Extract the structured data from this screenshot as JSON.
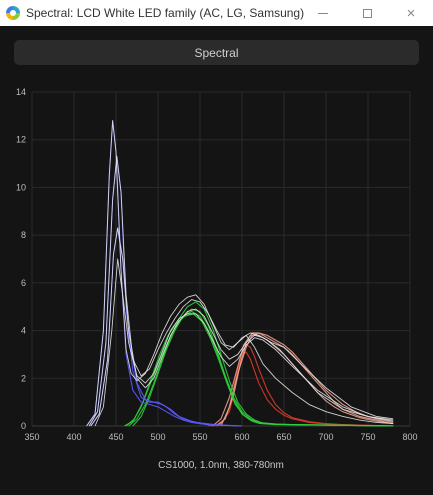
{
  "window": {
    "title": "Spectral: LCD White LED family (AC, LG, Samsung)",
    "minimize_icon": "minimize-icon",
    "maximize_icon": "maximize-icon",
    "close_icon": "close-icon",
    "close_glyph": "×"
  },
  "header": {
    "label": "Spectral"
  },
  "chart_data": {
    "type": "line",
    "title": "",
    "xlabel": "CS1000, 1.0nm, 380-780nm",
    "ylabel": "",
    "xlim": [
      350,
      800
    ],
    "ylim": [
      0,
      14
    ],
    "xticks": [
      350,
      400,
      450,
      500,
      550,
      600,
      650,
      700,
      750,
      800
    ],
    "yticks": [
      0,
      2,
      4,
      6,
      8,
      10,
      12,
      14
    ],
    "grid": true,
    "legend": "none",
    "series_colors": {
      "white": "#e6e6e6",
      "blue": "#5b5bff",
      "green": "#2fcf3a",
      "red": "#e03a2a",
      "red_light": "#e8a090"
    },
    "series": [
      {
        "color_key": "blue",
        "x": [
          415,
          425,
          435,
          442,
          446,
          450,
          456,
          462,
          470,
          480,
          490,
          500,
          510,
          520,
          530,
          540,
          560,
          600
        ],
        "y": [
          0,
          0.5,
          4.0,
          10.5,
          12.8,
          11.5,
          6.5,
          3.0,
          1.5,
          1.0,
          0.9,
          0.8,
          0.6,
          0.4,
          0.25,
          0.15,
          0.05,
          0
        ]
      },
      {
        "color_key": "blue",
        "x": [
          418,
          428,
          438,
          446,
          451,
          456,
          462,
          470,
          480,
          490,
          500,
          510,
          520,
          530,
          545,
          570,
          600
        ],
        "y": [
          0,
          0.6,
          3.5,
          9.5,
          11.3,
          9.8,
          5.0,
          2.3,
          1.2,
          1.0,
          1.0,
          0.8,
          0.5,
          0.3,
          0.15,
          0.05,
          0
        ]
      },
      {
        "color_key": "blue",
        "x": [
          420,
          430,
          440,
          447,
          452,
          458,
          465,
          475,
          485,
          495,
          505,
          515,
          525,
          540,
          560,
          600
        ],
        "y": [
          0,
          0.5,
          2.8,
          7.2,
          8.3,
          7.0,
          3.8,
          1.8,
          1.1,
          1.0,
          0.9,
          0.7,
          0.4,
          0.2,
          0.05,
          0
        ]
      },
      {
        "color_key": "white",
        "x": [
          415,
          425,
          435,
          442,
          446,
          450,
          456,
          462,
          468,
          475,
          485,
          495,
          505,
          515,
          525,
          535,
          545,
          555,
          565,
          575,
          585,
          595,
          605,
          615,
          625,
          640,
          660,
          680,
          700,
          720,
          740,
          760,
          780
        ],
        "y": [
          0,
          0.5,
          4.0,
          10.5,
          12.8,
          11.5,
          6.5,
          3.2,
          2.2,
          1.9,
          2.2,
          3.0,
          3.9,
          4.6,
          5.1,
          5.4,
          5.5,
          5.1,
          4.3,
          3.5,
          3.2,
          3.5,
          3.8,
          3.3,
          2.6,
          2.0,
          1.4,
          0.9,
          0.6,
          0.4,
          0.25,
          0.15,
          0.1
        ]
      },
      {
        "color_key": "white",
        "x": [
          418,
          428,
          438,
          446,
          451,
          456,
          462,
          470,
          480,
          490,
          500,
          510,
          520,
          530,
          540,
          550,
          560,
          570,
          580,
          590,
          600,
          610,
          620,
          630,
          645,
          665,
          690,
          720,
          750,
          780
        ],
        "y": [
          0,
          0.6,
          3.5,
          9.5,
          11.3,
          9.8,
          5.5,
          2.8,
          2.1,
          2.4,
          3.2,
          3.9,
          4.5,
          5.0,
          5.3,
          5.2,
          4.7,
          4.0,
          3.4,
          3.3,
          3.7,
          3.9,
          3.8,
          3.6,
          3.2,
          2.4,
          1.4,
          0.7,
          0.4,
          0.2
        ]
      },
      {
        "color_key": "white",
        "x": [
          420,
          430,
          440,
          447,
          452,
          458,
          465,
          475,
          485,
          495,
          505,
          515,
          525,
          535,
          545,
          555,
          565,
          575,
          585,
          595,
          605,
          615,
          625,
          635,
          650,
          670,
          700,
          730,
          760,
          780
        ],
        "y": [
          0,
          0.5,
          2.8,
          7.2,
          8.3,
          7.0,
          4.0,
          2.0,
          1.6,
          2.0,
          2.9,
          3.8,
          4.4,
          4.8,
          4.9,
          4.6,
          3.9,
          3.2,
          2.8,
          3.0,
          3.5,
          3.8,
          3.7,
          3.5,
          3.3,
          2.6,
          1.6,
          0.8,
          0.4,
          0.3
        ]
      },
      {
        "color_key": "white",
        "x": [
          425,
          435,
          445,
          452,
          458,
          465,
          475,
          485,
          495,
          505,
          515,
          525,
          535,
          545,
          555,
          565,
          575,
          585,
          595,
          605,
          615,
          625,
          640,
          660,
          690,
          720,
          750,
          780
        ],
        "y": [
          0,
          0.8,
          4.0,
          7.0,
          5.5,
          3.5,
          2.1,
          1.8,
          2.2,
          3.1,
          4.0,
          4.5,
          4.7,
          4.7,
          4.3,
          3.6,
          2.9,
          2.5,
          2.8,
          3.4,
          3.7,
          3.6,
          3.2,
          2.5,
          1.5,
          0.8,
          0.4,
          0.25
        ]
      },
      {
        "color_key": "green",
        "x": [
          460,
          470,
          480,
          490,
          500,
          510,
          520,
          530,
          540,
          550,
          560,
          570,
          580,
          590,
          600,
          610,
          620,
          640,
          660,
          680,
          700,
          740,
          780
        ],
        "y": [
          0,
          0.2,
          0.8,
          1.7,
          2.6,
          3.4,
          4.1,
          4.6,
          4.8,
          4.6,
          4.0,
          3.1,
          2.1,
          1.2,
          0.6,
          0.3,
          0.15,
          0.08,
          0.06,
          0.05,
          0.04,
          0.02,
          0
        ]
      },
      {
        "color_key": "green",
        "x": [
          465,
          475,
          485,
          495,
          505,
          515,
          525,
          535,
          545,
          555,
          565,
          575,
          585,
          595,
          605,
          615,
          625,
          645,
          670,
          700,
          740,
          780
        ],
        "y": [
          0,
          0.3,
          0.9,
          1.8,
          2.8,
          3.7,
          4.5,
          5.0,
          5.2,
          4.9,
          4.1,
          3.0,
          1.9,
          1.0,
          0.5,
          0.25,
          0.12,
          0.07,
          0.05,
          0.04,
          0.02,
          0
        ]
      },
      {
        "color_key": "green",
        "x": [
          470,
          480,
          490,
          500,
          510,
          520,
          530,
          540,
          550,
          560,
          570,
          580,
          590,
          600,
          610,
          620,
          640,
          670,
          700,
          740,
          780
        ],
        "y": [
          0,
          0.4,
          1.2,
          2.2,
          3.2,
          4.0,
          4.6,
          4.9,
          4.8,
          4.2,
          3.2,
          2.1,
          1.1,
          0.5,
          0.25,
          0.12,
          0.07,
          0.05,
          0.04,
          0.02,
          0
        ]
      },
      {
        "color_key": "green",
        "x": [
          462,
          472,
          482,
          492,
          502,
          512,
          522,
          532,
          542,
          552,
          562,
          572,
          582,
          592,
          602,
          612,
          622,
          640,
          670,
          700,
          740,
          780
        ],
        "y": [
          0,
          0.3,
          1.0,
          2.0,
          3.0,
          3.8,
          4.3,
          4.6,
          4.7,
          4.4,
          3.7,
          2.8,
          1.8,
          0.9,
          0.45,
          0.2,
          0.1,
          0.06,
          0.05,
          0.04,
          0.02,
          0
        ]
      },
      {
        "color_key": "red",
        "x": [
          560,
          570,
          580,
          585,
          590,
          595,
          600,
          605,
          610,
          615,
          620,
          630,
          640,
          650,
          660,
          680,
          700,
          720,
          740,
          760,
          780
        ],
        "y": [
          0,
          0.05,
          0.3,
          0.8,
          1.6,
          2.4,
          3.0,
          3.1,
          2.8,
          2.3,
          1.8,
          1.1,
          0.7,
          0.45,
          0.3,
          0.15,
          0.08,
          0.05,
          0.03,
          0.02,
          0.01
        ]
      },
      {
        "color_key": "red",
        "x": [
          565,
          575,
          585,
          590,
          595,
          600,
          605,
          610,
          615,
          620,
          630,
          640,
          650,
          660,
          680,
          700,
          720,
          740,
          760,
          780
        ],
        "y": [
          0,
          0.1,
          0.6,
          1.3,
          2.2,
          3.0,
          3.4,
          3.3,
          2.9,
          2.4,
          1.5,
          0.9,
          0.55,
          0.35,
          0.18,
          0.1,
          0.06,
          0.04,
          0.02,
          0.01
        ]
      },
      {
        "color_key": "red_light",
        "x": [
          570,
          580,
          590,
          598,
          605,
          612,
          620,
          630,
          640,
          650,
          660,
          670,
          680,
          690,
          700,
          710,
          720,
          740,
          760,
          780
        ],
        "y": [
          0,
          0.3,
          1.3,
          2.6,
          3.5,
          3.9,
          3.9,
          3.7,
          3.5,
          3.3,
          3.0,
          2.6,
          2.2,
          1.8,
          1.4,
          1.0,
          0.7,
          0.4,
          0.25,
          0.1
        ]
      },
      {
        "color_key": "red_light",
        "x": [
          565,
          575,
          585,
          595,
          602,
          610,
          620,
          630,
          640,
          650,
          660,
          670,
          680,
          690,
          700,
          710,
          720,
          740,
          760,
          780
        ],
        "y": [
          0,
          0.3,
          1.2,
          2.5,
          3.4,
          3.8,
          3.8,
          3.6,
          3.3,
          3.0,
          2.6,
          2.2,
          1.8,
          1.4,
          1.05,
          0.8,
          0.6,
          0.35,
          0.2,
          0.1
        ]
      },
      {
        "color_key": "red_light",
        "x": [
          575,
          585,
          595,
          605,
          612,
          620,
          630,
          640,
          650,
          660,
          670,
          680,
          690,
          700,
          710,
          720,
          740,
          760,
          780
        ],
        "y": [
          0,
          0.8,
          2.2,
          3.3,
          3.8,
          3.9,
          3.8,
          3.6,
          3.4,
          3.1,
          2.7,
          2.3,
          1.9,
          1.5,
          1.2,
          0.9,
          0.5,
          0.3,
          0.15
        ]
      }
    ]
  }
}
